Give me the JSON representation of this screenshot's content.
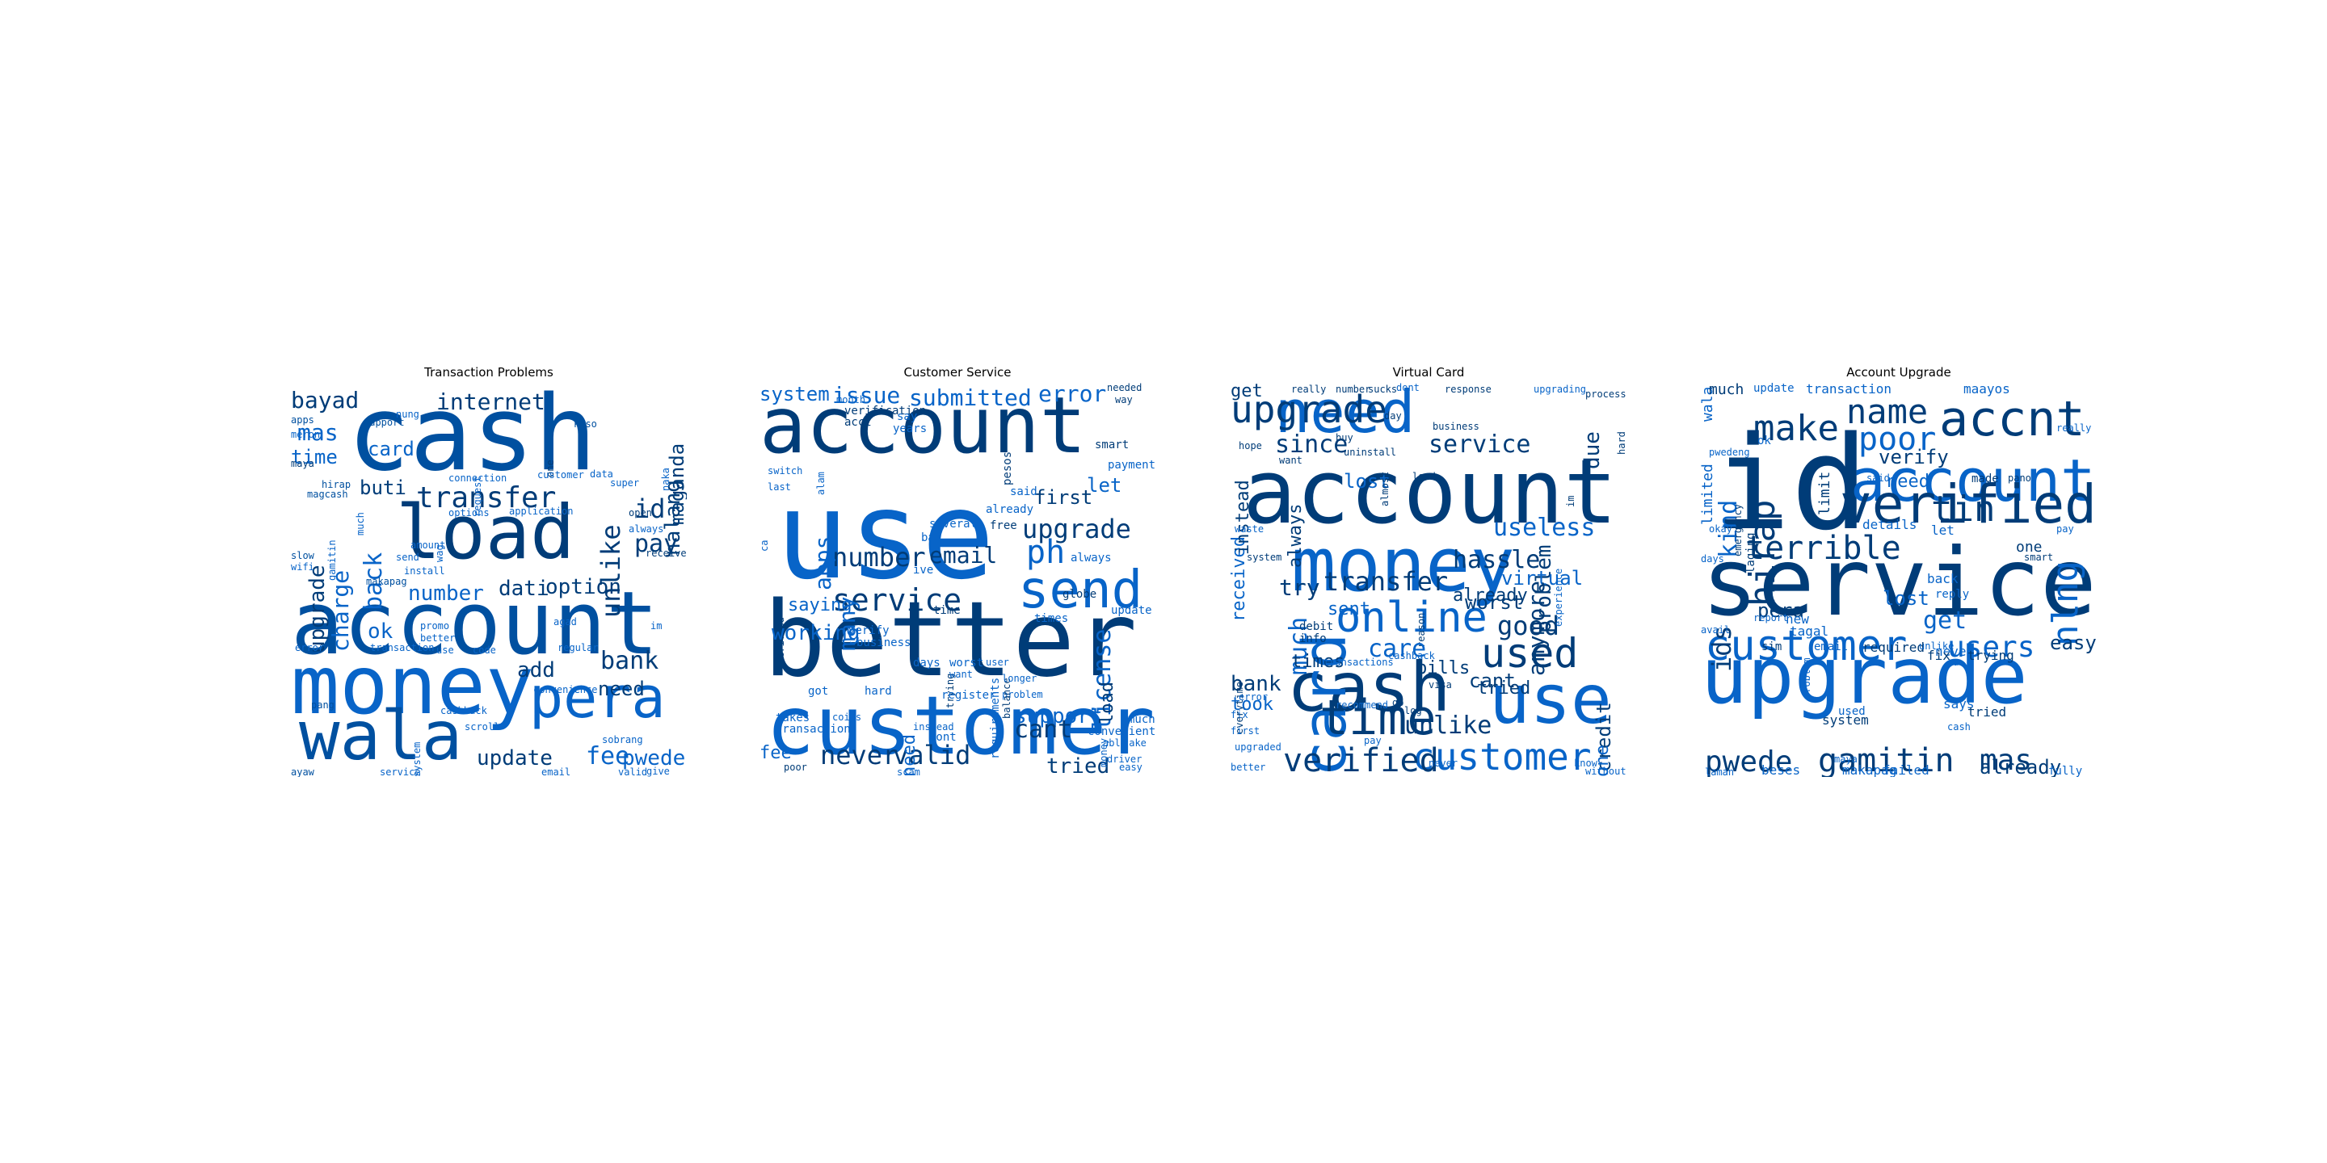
{
  "palette": [
    "#003c78",
    "#0050a0",
    "#0864c8",
    "#1e78dc",
    "#3c8ce6"
  ],
  "panels": [
    {
      "title": "Transaction Problems",
      "words": [
        "cash",
        "account",
        "money",
        "load",
        "wala",
        "pera",
        "transfer",
        "internet",
        "bayad",
        "mas",
        "time",
        "card",
        "upgrade",
        "charge",
        "back",
        "buti",
        "id",
        "nalang",
        "maganda",
        "unlike",
        "pay",
        "number",
        "dati",
        "option",
        "add",
        "need",
        "bank",
        "fee",
        "pwede",
        "update",
        "ok",
        "apps",
        "support",
        "nung",
        "kaso",
        "request",
        "one",
        "connection",
        "customer",
        "data",
        "super",
        "magcash",
        "hirap",
        "much",
        "gamitin",
        "slow",
        "wifi",
        "install",
        "amount",
        "send",
        "wag",
        "options",
        "application",
        "makapag",
        "error",
        "transaction",
        "better",
        "promo",
        "agad",
        "im",
        "use",
        "code",
        "regular",
        "pang",
        "convenience",
        "cashback",
        "scroll",
        "system",
        "sobrang",
        "valid",
        "give",
        "ayaw",
        "service",
        "email",
        "open",
        "always",
        "receive",
        "naka",
        "meron",
        "maya",
        "debit"
      ]
    },
    {
      "title": "Customer Service",
      "words": [
        "account",
        "use",
        "better",
        "customer",
        "send",
        "service",
        "number",
        "email",
        "ph",
        "upgrade",
        "system",
        "issue",
        "submitted",
        "error",
        "needed",
        "way",
        "month",
        "verification",
        "acct",
        "say",
        "years",
        "pesos",
        "smart",
        "payment",
        "let",
        "apps",
        "many",
        "support",
        "license",
        "globe",
        "always",
        "first",
        "said",
        "free",
        "already",
        "several",
        "bad",
        "ive",
        "switch",
        "last",
        "verified",
        "alam",
        "ca",
        "saying",
        "working",
        "verify",
        "business",
        "time",
        "times",
        "update",
        "take",
        "load",
        "requirements",
        "trying",
        "problem",
        "days",
        "balance",
        "got",
        "hard",
        "register",
        "longer",
        "much",
        "convenient",
        "able",
        "takes",
        "transaction",
        "dont",
        "poor",
        "fee",
        "never",
        "valid",
        "need",
        "scam",
        "tried",
        "cant",
        "coins",
        "worst",
        "want",
        "user",
        "instead",
        "money",
        "driver",
        "easy",
        "buy",
        "im",
        "cashback"
      ]
    },
    {
      "title": "Virtual Card",
      "words": [
        "account",
        "money",
        "cash",
        "card",
        "use",
        "customer",
        "time",
        "online",
        "used",
        "need",
        "upgrade",
        "get",
        "really",
        "number",
        "sucks",
        "dont",
        "response",
        "upgrading",
        "process",
        "due",
        "hard",
        "since",
        "service",
        "hope",
        "want",
        "buy",
        "uninstall",
        "day",
        "business",
        "load",
        "lost",
        "almost",
        "im",
        "received",
        "useless",
        "problem",
        "instead",
        "always",
        "system",
        "transfer",
        "try",
        "hassle",
        "virtual",
        "worst",
        "good",
        "experience",
        "anymore",
        "much",
        "sent",
        "debit",
        "info",
        "reason",
        "already",
        "times",
        "care",
        "cashback",
        "bills",
        "visa",
        "bank",
        "fix",
        "everytime",
        "cant",
        "credit",
        "tried",
        "one",
        "first",
        "error",
        "recommend",
        "go",
        "log",
        "took",
        "upgraded",
        "better",
        "pay",
        "verified",
        "unlike",
        "never",
        "know",
        "without",
        "waste",
        "transactions"
      ]
    },
    {
      "title": "Account Upgrade",
      "words": [
        "id",
        "upgrade",
        "service",
        "account",
        "customer",
        "verified",
        "accnt",
        "make",
        "name",
        "poor",
        "tin",
        "nlng",
        "hirap",
        "kind",
        "ids",
        "terrible",
        "wala",
        "much",
        "update",
        "transaction",
        "maayos",
        "limited",
        "verify",
        "limit",
        "really",
        "pwedeng",
        "ok",
        "said",
        "need",
        "made",
        "pano",
        "emergency",
        "okay",
        "one",
        "smart",
        "pay",
        "days",
        "laging",
        "pera",
        "report",
        "new",
        "tagal",
        "lost",
        "details",
        "let",
        "back",
        "reply",
        "get",
        "users",
        "easy",
        "never",
        "sim",
        "email",
        "required",
        "unlike",
        "fix",
        "trying",
        "ca",
        "avail",
        "says",
        "tried",
        "problem",
        "used",
        "system",
        "cash",
        "pwede",
        "gamitin",
        "mas",
        "already",
        "laman",
        "beses",
        "makapag",
        "failed",
        "fully",
        "maya"
      ]
    }
  ]
}
